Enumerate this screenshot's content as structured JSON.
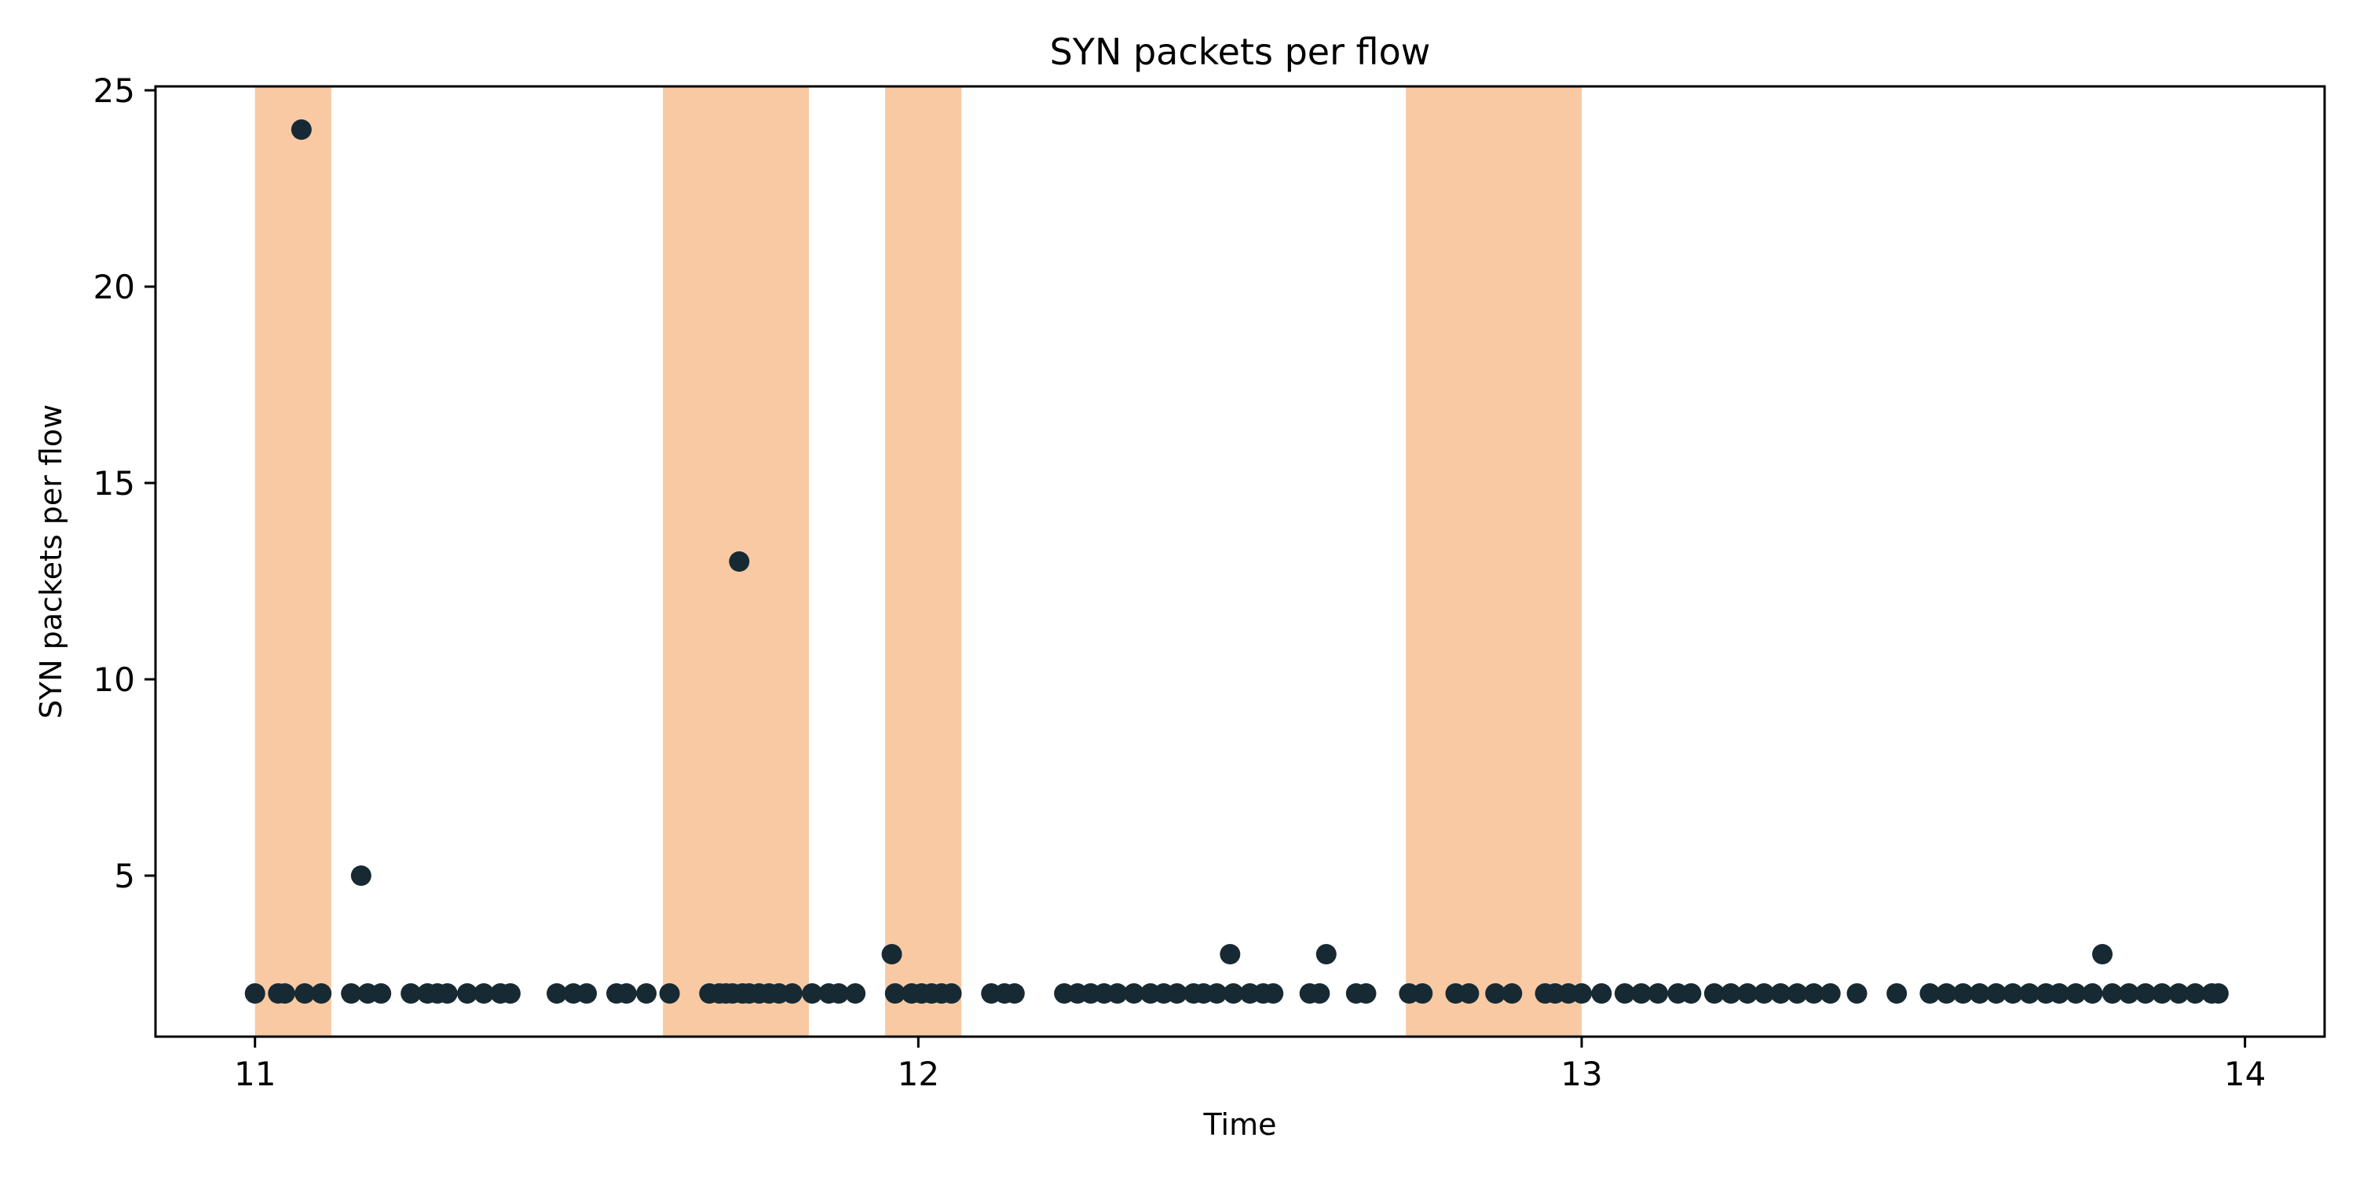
{
  "chart_data": {
    "type": "scatter",
    "title": "SYN packets per flow",
    "xlabel": "Time",
    "ylabel": "SYN packets per flow",
    "xlim": [
      10.85,
      14.12
    ],
    "ylim": [
      0.9,
      25.1
    ],
    "xticks": [
      11,
      12,
      13,
      14
    ],
    "yticks": [
      5,
      10,
      15,
      20,
      25
    ],
    "grid": false,
    "colors": {
      "point": "#172a33",
      "band": "#f8c9a2",
      "axis": "#000000"
    },
    "highlight_bands": [
      {
        "x0": 11.0,
        "x1": 11.115
      },
      {
        "x0": 11.615,
        "x1": 11.835
      },
      {
        "x0": 11.95,
        "x1": 12.065
      },
      {
        "x0": 12.735,
        "x1": 13.0
      }
    ],
    "points": [
      [
        11.0,
        2
      ],
      [
        11.035,
        2
      ],
      [
        11.045,
        2
      ],
      [
        11.07,
        24
      ],
      [
        11.075,
        2
      ],
      [
        11.1,
        2
      ],
      [
        11.145,
        2
      ],
      [
        11.16,
        5
      ],
      [
        11.17,
        2
      ],
      [
        11.19,
        2
      ],
      [
        11.235,
        2
      ],
      [
        11.26,
        2
      ],
      [
        11.275,
        2
      ],
      [
        11.29,
        2
      ],
      [
        11.32,
        2
      ],
      [
        11.345,
        2
      ],
      [
        11.37,
        2
      ],
      [
        11.385,
        2
      ],
      [
        11.455,
        2
      ],
      [
        11.48,
        2
      ],
      [
        11.5,
        2
      ],
      [
        11.545,
        2
      ],
      [
        11.56,
        2
      ],
      [
        11.59,
        2
      ],
      [
        11.625,
        2
      ],
      [
        11.685,
        2
      ],
      [
        11.7,
        2
      ],
      [
        11.71,
        2
      ],
      [
        11.72,
        2
      ],
      [
        11.73,
        13
      ],
      [
        11.735,
        2
      ],
      [
        11.745,
        2
      ],
      [
        11.76,
        2
      ],
      [
        11.775,
        2
      ],
      [
        11.79,
        2
      ],
      [
        11.81,
        2
      ],
      [
        11.84,
        2
      ],
      [
        11.865,
        2
      ],
      [
        11.88,
        2
      ],
      [
        11.905,
        2
      ],
      [
        11.96,
        3
      ],
      [
        11.965,
        2
      ],
      [
        11.99,
        2
      ],
      [
        12.005,
        2
      ],
      [
        12.02,
        2
      ],
      [
        12.035,
        2
      ],
      [
        12.05,
        2
      ],
      [
        12.11,
        2
      ],
      [
        12.13,
        2
      ],
      [
        12.145,
        2
      ],
      [
        12.22,
        2
      ],
      [
        12.24,
        2
      ],
      [
        12.26,
        2
      ],
      [
        12.28,
        2
      ],
      [
        12.3,
        2
      ],
      [
        12.325,
        2
      ],
      [
        12.35,
        2
      ],
      [
        12.37,
        2
      ],
      [
        12.39,
        2
      ],
      [
        12.415,
        2
      ],
      [
        12.43,
        2
      ],
      [
        12.45,
        2
      ],
      [
        12.47,
        3
      ],
      [
        12.475,
        2
      ],
      [
        12.5,
        2
      ],
      [
        12.52,
        2
      ],
      [
        12.535,
        2
      ],
      [
        12.59,
        2
      ],
      [
        12.605,
        2
      ],
      [
        12.615,
        3
      ],
      [
        12.66,
        2
      ],
      [
        12.675,
        2
      ],
      [
        12.74,
        2
      ],
      [
        12.76,
        2
      ],
      [
        12.81,
        2
      ],
      [
        12.83,
        2
      ],
      [
        12.87,
        2
      ],
      [
        12.895,
        2
      ],
      [
        12.945,
        2
      ],
      [
        12.96,
        2
      ],
      [
        12.98,
        2
      ],
      [
        13.0,
        2
      ],
      [
        13.03,
        2
      ],
      [
        13.065,
        2
      ],
      [
        13.09,
        2
      ],
      [
        13.115,
        2
      ],
      [
        13.145,
        2
      ],
      [
        13.165,
        2
      ],
      [
        13.2,
        2
      ],
      [
        13.225,
        2
      ],
      [
        13.25,
        2
      ],
      [
        13.275,
        2
      ],
      [
        13.3,
        2
      ],
      [
        13.325,
        2
      ],
      [
        13.35,
        2
      ],
      [
        13.375,
        2
      ],
      [
        13.415,
        2
      ],
      [
        13.475,
        2
      ],
      [
        13.525,
        2
      ],
      [
        13.55,
        2
      ],
      [
        13.575,
        2
      ],
      [
        13.6,
        2
      ],
      [
        13.625,
        2
      ],
      [
        13.65,
        2
      ],
      [
        13.675,
        2
      ],
      [
        13.7,
        2
      ],
      [
        13.72,
        2
      ],
      [
        13.745,
        2
      ],
      [
        13.77,
        2
      ],
      [
        13.785,
        3
      ],
      [
        13.8,
        2
      ],
      [
        13.825,
        2
      ],
      [
        13.85,
        2
      ],
      [
        13.875,
        2
      ],
      [
        13.9,
        2
      ],
      [
        13.925,
        2
      ],
      [
        13.95,
        2
      ],
      [
        13.96,
        2
      ]
    ]
  }
}
